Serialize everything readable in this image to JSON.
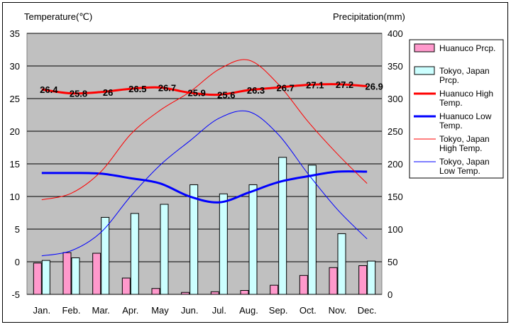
{
  "chart_data": {
    "type": "bar+line",
    "left_axis_title": "Temperature(℃)",
    "right_axis_title": "Precipitation(mm)",
    "categories": [
      "Jan.",
      "Feb.",
      "Mar.",
      "Apr.",
      "May",
      "Jun.",
      "Jul.",
      "Aug.",
      "Sep.",
      "Oct.",
      "Nov.",
      "Dec."
    ],
    "left_axis": {
      "min": -5,
      "max": 35,
      "step": 5
    },
    "right_axis": {
      "min": 0,
      "max": 400,
      "step": 50
    },
    "grid": true,
    "legend_position": "right",
    "series": [
      {
        "name": "Huanuco Prcp.",
        "kind": "bar",
        "axis": "right",
        "color": "#ff99cc",
        "values": [
          48,
          64,
          63,
          25,
          9,
          3,
          4,
          6,
          14,
          29,
          41,
          44
        ]
      },
      {
        "name": "Tokyo, Japan Prcp.",
        "kind": "bar",
        "axis": "right",
        "color": "#ccffff",
        "values": [
          52,
          56,
          118,
          124,
          138,
          168,
          154,
          168,
          210,
          198,
          93,
          51
        ]
      },
      {
        "name": "Huanuco High Temp.",
        "kind": "line",
        "axis": "left",
        "color": "#ff0000",
        "width": 3,
        "values": [
          26.4,
          25.8,
          26,
          26.5,
          26.7,
          25.9,
          25.6,
          26.3,
          26.7,
          27.1,
          27.2,
          26.9
        ],
        "labels": [
          "26.4",
          "25.8",
          "26",
          "26.5",
          "26.7",
          "25.9",
          "25.6",
          "26.3",
          "26.7",
          "27.1",
          "27.2",
          "26.9"
        ]
      },
      {
        "name": "Huanuco Low Temp.",
        "kind": "line",
        "axis": "left",
        "color": "#0000ff",
        "width": 3,
        "values": [
          13.6,
          13.6,
          13.5,
          12.8,
          12,
          10,
          9.1,
          10.6,
          12.2,
          13.1,
          13.8,
          13.8
        ]
      },
      {
        "name": "Tokyo, Japan High Temp.",
        "kind": "line",
        "axis": "left",
        "color": "#ff0000",
        "width": 1,
        "values": [
          9.5,
          10.5,
          13.8,
          19.5,
          23.2,
          26,
          29.5,
          30.9,
          27.2,
          21.5,
          16.5,
          12
        ]
      },
      {
        "name": "Tokyo, Japan Low Temp.",
        "kind": "line",
        "axis": "left",
        "color": "#0000ff",
        "width": 1,
        "values": [
          0.9,
          1.7,
          4.5,
          10,
          14.8,
          18.5,
          22,
          23,
          19.5,
          13.5,
          8,
          3.5
        ]
      }
    ],
    "legend": [
      {
        "text": "Huanuco Prcp.",
        "marker": "bar",
        "color": "#ff99cc"
      },
      {
        "text": "Tokyo, Japan Prcp.",
        "marker": "bar",
        "color": "#ccffff"
      },
      {
        "text": "Huanuco High Temp.",
        "marker": "line",
        "color": "#ff0000",
        "width": 3
      },
      {
        "text": "Huanuco Low Temp.",
        "marker": "line",
        "color": "#0000ff",
        "width": 3
      },
      {
        "text": "Tokyo, Japan High Temp.",
        "marker": "line",
        "color": "#ff0000",
        "width": 1
      },
      {
        "text": "Tokyo, Japan Low Temp.",
        "marker": "line",
        "color": "#0000ff",
        "width": 1
      }
    ],
    "plot_background": "#c0c0c0"
  }
}
